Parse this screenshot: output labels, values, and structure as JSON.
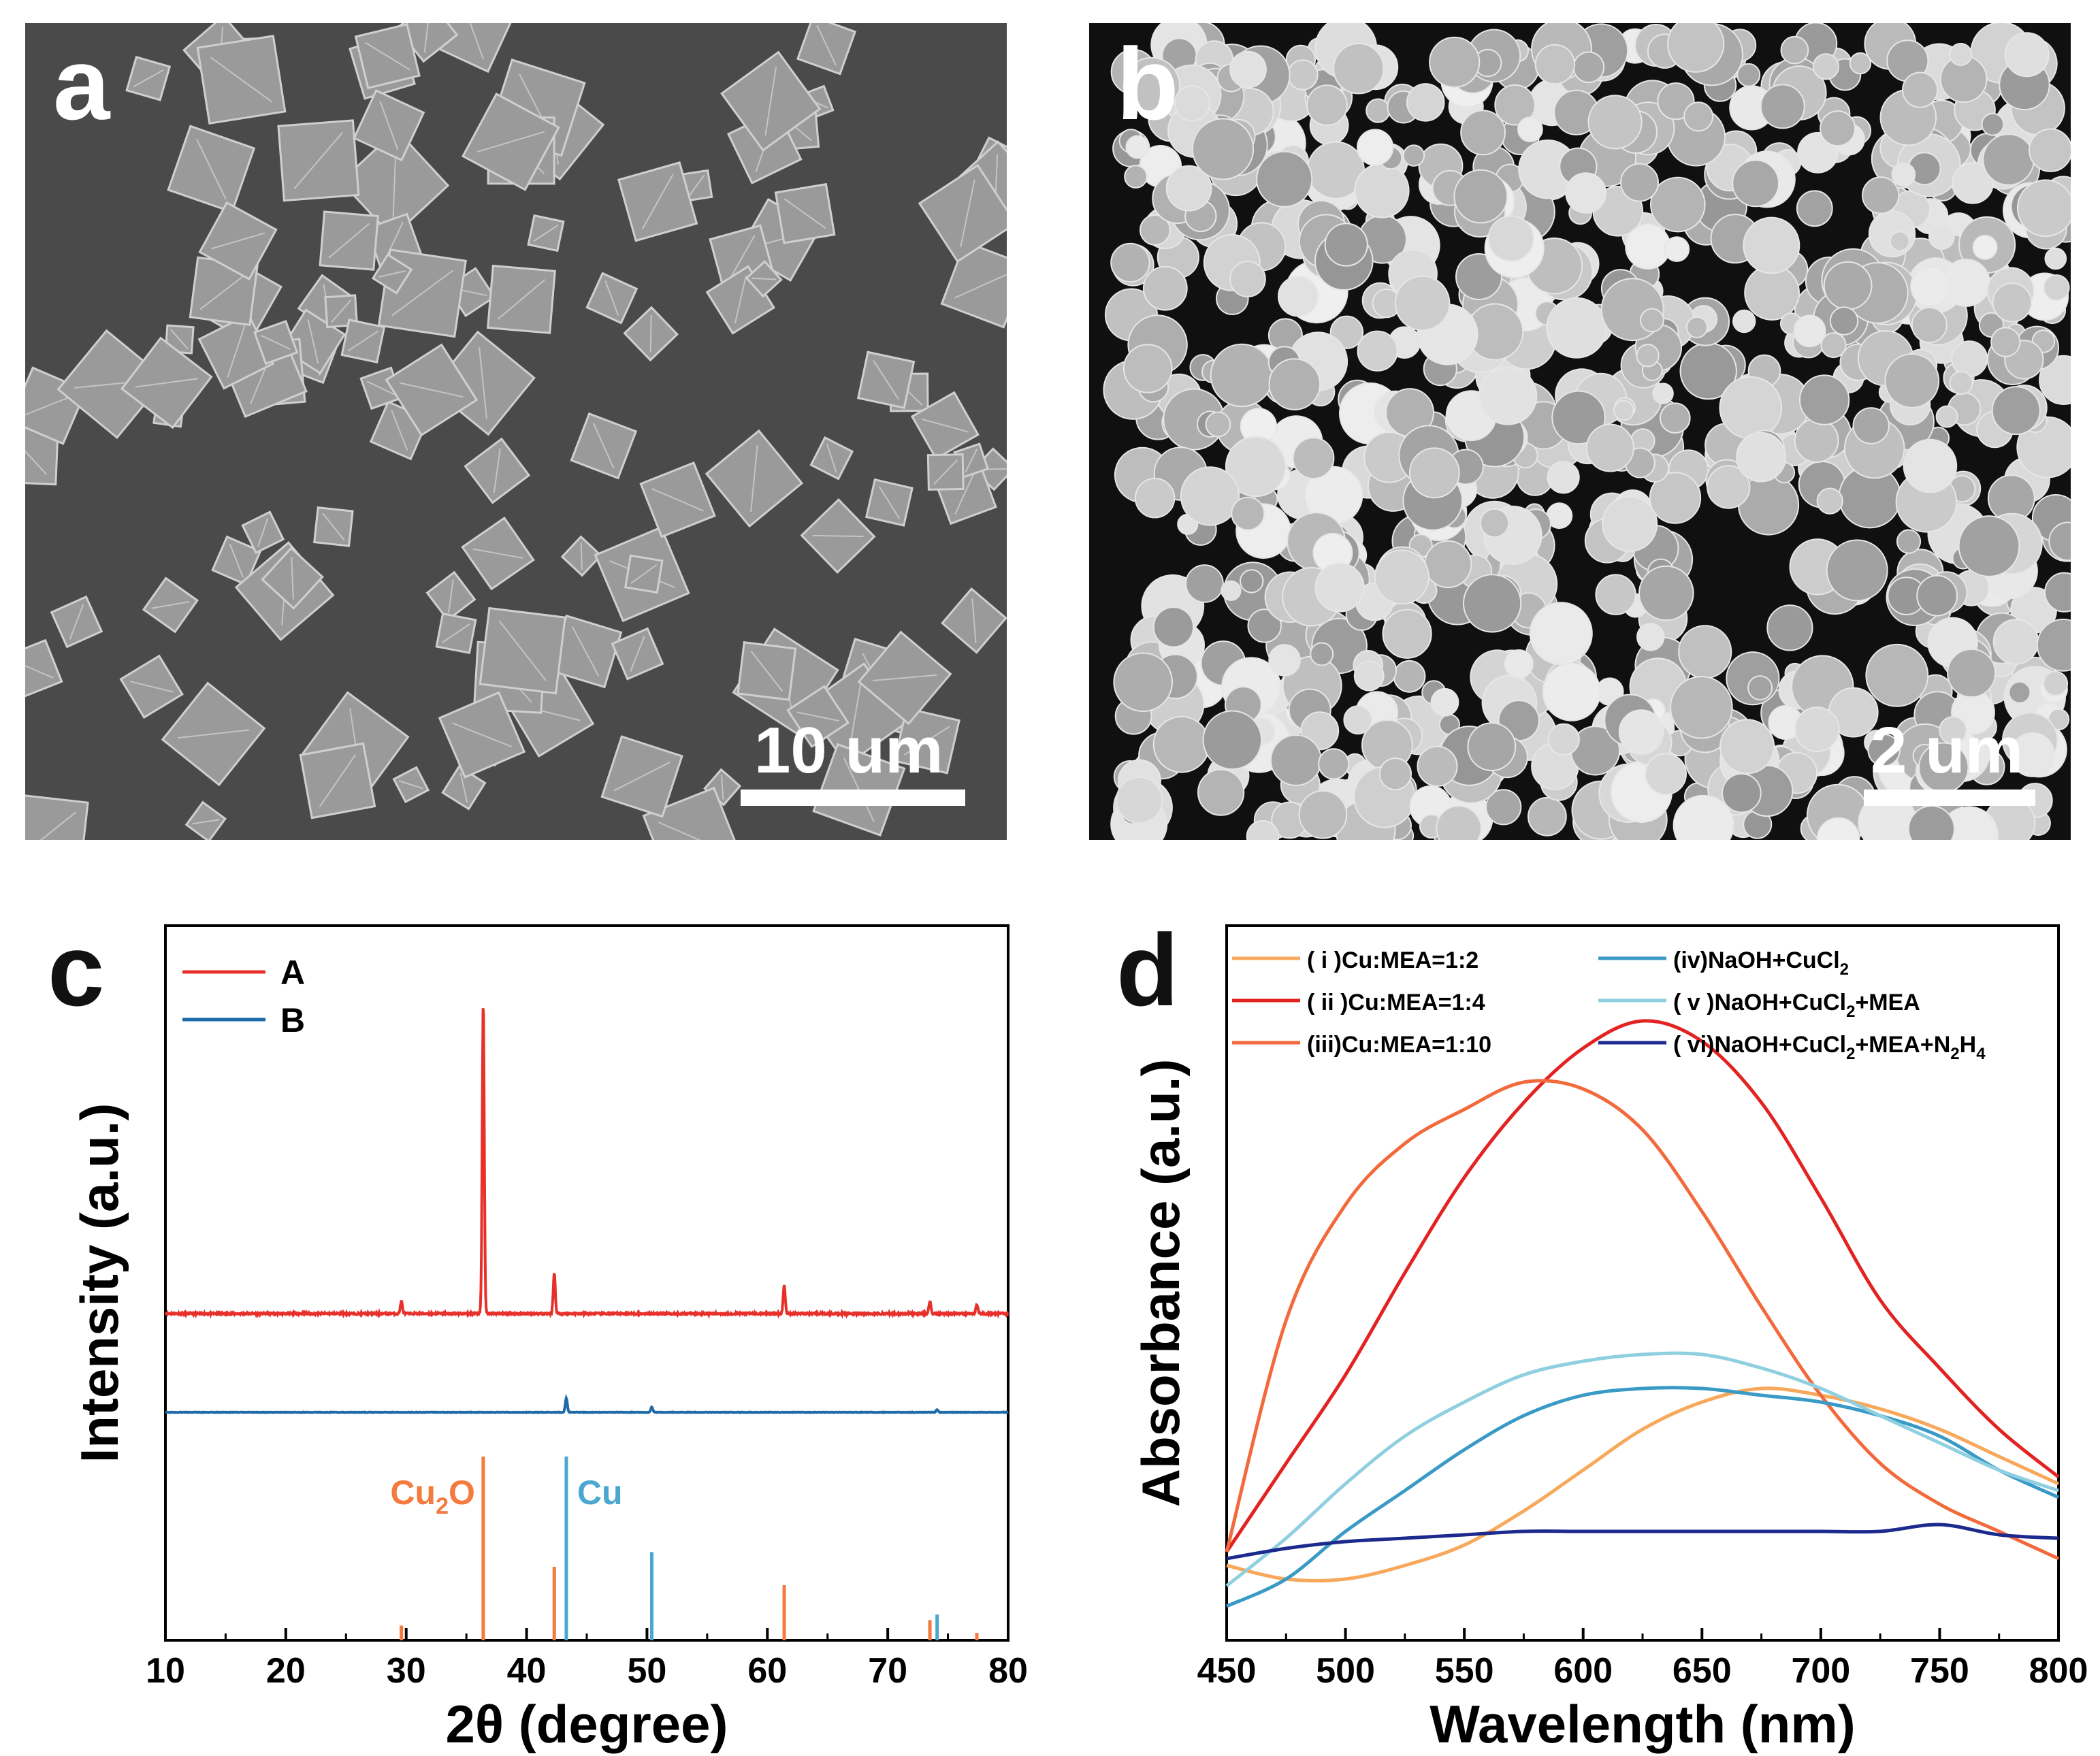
{
  "panels": {
    "a": {
      "label": "a",
      "scale_bar": "10 um"
    },
    "b": {
      "label": "b",
      "scale_bar": "2 um"
    },
    "c": {
      "label": "c"
    },
    "d": {
      "label": "d"
    }
  },
  "colors": {
    "A": "#e8302b",
    "B": "#1f6aa8",
    "Cu2O_ref": "#f47a3e",
    "Cu_ref": "#4aa8d0",
    "i": "#f7a85a",
    "ii": "#e32222",
    "iii": "#f26a3c",
    "iv": "#3a9ac6",
    "v": "#8fcfe0",
    "vi": "#1b2a8c"
  },
  "chart_data": [
    {
      "panel": "c",
      "type": "line",
      "xlabel": "2θ (degree)",
      "ylabel": "Intensity (a.u.)",
      "xlim": [
        10,
        80
      ],
      "xticks": [
        10,
        20,
        30,
        40,
        50,
        60,
        70,
        80
      ],
      "legend": {
        "placement": "top-left",
        "entries": [
          "A",
          "B"
        ]
      },
      "series": [
        {
          "name": "A",
          "peaks": [
            [
              29.6,
              0.04
            ],
            [
              36.4,
              1.0
            ],
            [
              42.3,
              0.13
            ],
            [
              61.4,
              0.09
            ],
            [
              73.5,
              0.04
            ],
            [
              77.4,
              0.03
            ]
          ]
        },
        {
          "name": "B",
          "peaks": [
            [
              43.3,
              0.22
            ],
            [
              50.4,
              0.08
            ],
            [
              74.1,
              0.04
            ]
          ]
        }
      ],
      "references": [
        {
          "name": "Cu₂O",
          "label_main": "Cu",
          "label_sub": "2",
          "label_tail": "O",
          "lines": [
            [
              29.6,
              0.08
            ],
            [
              36.4,
              1.0
            ],
            [
              42.3,
              0.4
            ],
            [
              61.4,
              0.3
            ],
            [
              73.5,
              0.11
            ],
            [
              77.4,
              0.04
            ]
          ]
        },
        {
          "name": "Cu",
          "label_main": "Cu",
          "lines": [
            [
              43.3,
              1.0
            ],
            [
              50.4,
              0.48
            ],
            [
              74.1,
              0.14
            ]
          ]
        }
      ]
    },
    {
      "panel": "d",
      "type": "line",
      "xlabel": "Wavelength (nm)",
      "ylabel": "Absorbance (a.u.)",
      "xlim": [
        450,
        800
      ],
      "xticks": [
        450,
        500,
        550,
        600,
        650,
        700,
        750,
        800
      ],
      "legend": {
        "placement": "top",
        "entries": [
          {
            "id": "i",
            "text": "( i )Cu:MEA=1:2"
          },
          {
            "id": "ii",
            "text": "( ii )Cu:MEA=1:4"
          },
          {
            "id": "iii",
            "text": "(iii)Cu:MEA=1:10"
          },
          {
            "id": "iv",
            "text": "(iv)NaOH+CuCl",
            "sub": "2"
          },
          {
            "id": "v",
            "text": "( v )NaOH+CuCl",
            "sub": "2",
            "tail": "+MEA"
          },
          {
            "id": "vi",
            "text": "( vi)NaOH+CuCl",
            "sub": "2",
            "tail": "+MEA+N",
            "sub2": "2",
            "tail2": "H",
            "sub3": "4"
          }
        ]
      },
      "series": [
        {
          "id": "i",
          "x": [
            450,
            475,
            500,
            525,
            550,
            575,
            600,
            625,
            650,
            675,
            700,
            725,
            750,
            775,
            800
          ],
          "y": [
            0.07,
            0.05,
            0.05,
            0.07,
            0.1,
            0.15,
            0.21,
            0.27,
            0.31,
            0.33,
            0.32,
            0.3,
            0.27,
            0.23,
            0.19
          ]
        },
        {
          "id": "ii",
          "x": [
            450,
            475,
            500,
            525,
            550,
            575,
            600,
            625,
            650,
            675,
            700,
            725,
            750,
            775,
            800
          ],
          "y": [
            0.09,
            0.22,
            0.35,
            0.5,
            0.64,
            0.75,
            0.83,
            0.87,
            0.84,
            0.75,
            0.61,
            0.46,
            0.36,
            0.27,
            0.2
          ]
        },
        {
          "id": "iii",
          "x": [
            450,
            475,
            500,
            525,
            550,
            575,
            600,
            625,
            650,
            675,
            700,
            725,
            750,
            775,
            800
          ],
          "y": [
            0.09,
            0.43,
            0.6,
            0.69,
            0.74,
            0.78,
            0.77,
            0.71,
            0.59,
            0.45,
            0.32,
            0.22,
            0.16,
            0.12,
            0.08
          ]
        },
        {
          "id": "iv",
          "x": [
            450,
            475,
            500,
            525,
            550,
            575,
            600,
            625,
            650,
            675,
            700,
            725,
            750,
            775,
            800
          ],
          "y": [
            0.01,
            0.05,
            0.12,
            0.18,
            0.24,
            0.29,
            0.32,
            0.33,
            0.33,
            0.32,
            0.31,
            0.29,
            0.26,
            0.21,
            0.17
          ]
        },
        {
          "id": "v",
          "x": [
            450,
            475,
            500,
            525,
            550,
            575,
            600,
            625,
            650,
            675,
            700,
            725,
            750,
            775,
            800
          ],
          "y": [
            0.04,
            0.11,
            0.19,
            0.26,
            0.31,
            0.35,
            0.37,
            0.38,
            0.38,
            0.36,
            0.33,
            0.29,
            0.25,
            0.21,
            0.18
          ]
        },
        {
          "id": "vi",
          "x": [
            450,
            475,
            500,
            525,
            550,
            575,
            600,
            625,
            650,
            675,
            700,
            725,
            750,
            775,
            800
          ],
          "y": [
            0.08,
            0.095,
            0.105,
            0.11,
            0.115,
            0.12,
            0.12,
            0.12,
            0.12,
            0.12,
            0.12,
            0.12,
            0.13,
            0.115,
            0.11
          ]
        }
      ]
    }
  ]
}
